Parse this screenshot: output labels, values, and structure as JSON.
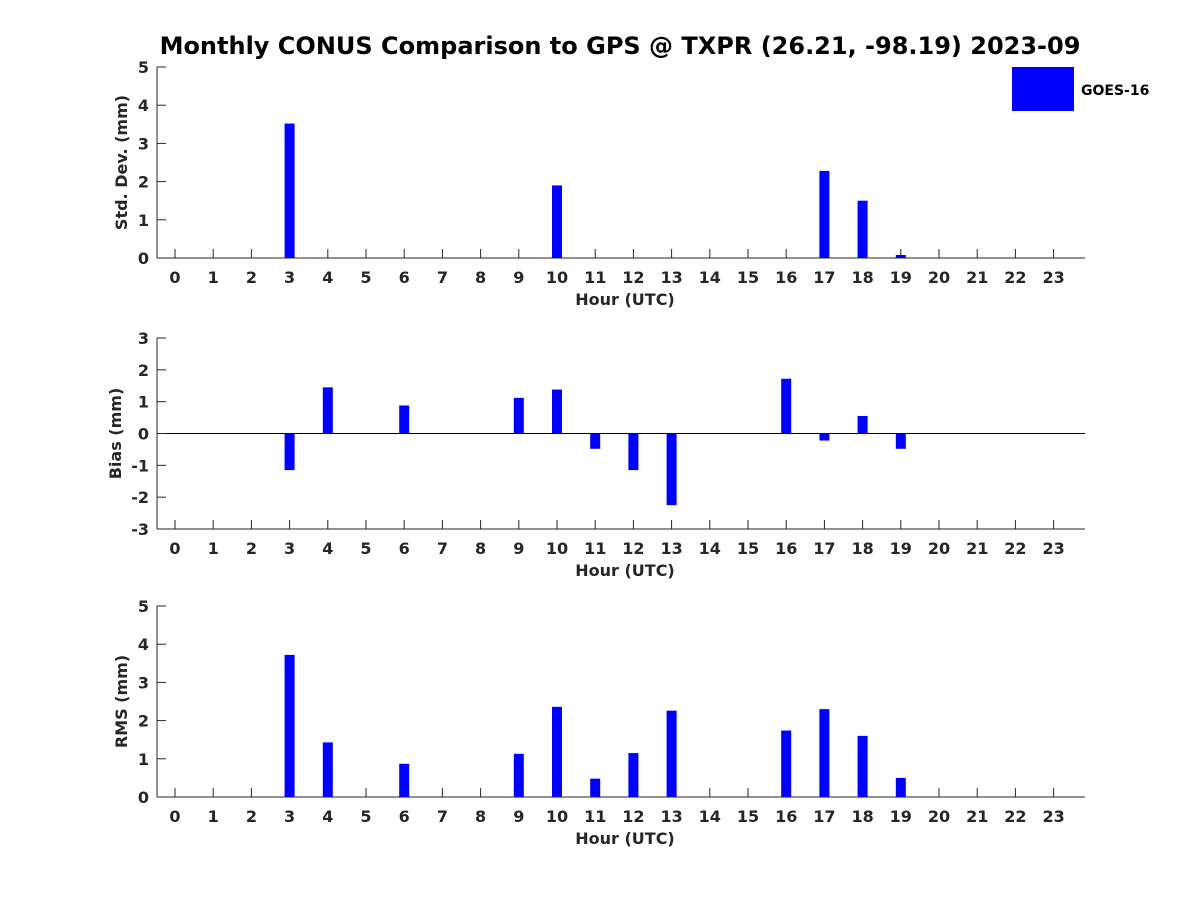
{
  "figure": {
    "title": "Monthly CONUS Comparison to GPS @ TXPR (26.21, -98.19) 2023-09",
    "legend_label": "GOES-16",
    "bar_color": "#0000ff"
  },
  "chart_data": [
    {
      "type": "bar",
      "xlabel": "Hour (UTC)",
      "ylabel": "Std. Dev. (mm)",
      "ylim": [
        0,
        5
      ],
      "yticks": [
        0,
        1,
        2,
        3,
        4,
        5
      ],
      "categories": [
        "0",
        "1",
        "2",
        "3",
        "4",
        "5",
        "6",
        "7",
        "8",
        "9",
        "10",
        "11",
        "12",
        "13",
        "14",
        "15",
        "16",
        "17",
        "18",
        "19",
        "20",
        "21",
        "22",
        "23"
      ],
      "series": [
        {
          "name": "GOES-16",
          "values": [
            null,
            null,
            null,
            3.52,
            null,
            null,
            null,
            null,
            null,
            null,
            1.9,
            null,
            null,
            null,
            null,
            null,
            null,
            2.28,
            1.5,
            0.08,
            null,
            null,
            null,
            null
          ]
        }
      ],
      "legend": "top-right",
      "grid": false
    },
    {
      "type": "bar",
      "xlabel": "Hour (UTC)",
      "ylabel": "Bias (mm)",
      "ylim": [
        -3,
        3
      ],
      "yticks": [
        -3,
        -2,
        -1,
        0,
        1,
        2,
        3
      ],
      "categories": [
        "0",
        "1",
        "2",
        "3",
        "4",
        "5",
        "6",
        "7",
        "8",
        "9",
        "10",
        "11",
        "12",
        "13",
        "14",
        "15",
        "16",
        "17",
        "18",
        "19",
        "20",
        "21",
        "22",
        "23"
      ],
      "series": [
        {
          "name": "GOES-16",
          "values": [
            null,
            null,
            null,
            -1.15,
            1.45,
            null,
            0.88,
            null,
            null,
            1.12,
            1.38,
            -0.48,
            -1.15,
            -2.25,
            null,
            null,
            1.72,
            -0.22,
            0.55,
            -0.48,
            null,
            null,
            null,
            null
          ]
        }
      ],
      "grid": false
    },
    {
      "type": "bar",
      "xlabel": "Hour (UTC)",
      "ylabel": "RMS (mm)",
      "ylim": [
        0,
        5
      ],
      "yticks": [
        0,
        1,
        2,
        3,
        4,
        5
      ],
      "categories": [
        "0",
        "1",
        "2",
        "3",
        "4",
        "5",
        "6",
        "7",
        "8",
        "9",
        "10",
        "11",
        "12",
        "13",
        "14",
        "15",
        "16",
        "17",
        "18",
        "19",
        "20",
        "21",
        "22",
        "23"
      ],
      "series": [
        {
          "name": "GOES-16",
          "values": [
            null,
            null,
            null,
            3.72,
            1.43,
            null,
            0.87,
            null,
            null,
            1.13,
            2.36,
            0.48,
            1.15,
            2.26,
            null,
            null,
            1.74,
            2.3,
            1.6,
            0.5,
            null,
            null,
            null,
            null
          ]
        }
      ],
      "grid": false
    }
  ]
}
